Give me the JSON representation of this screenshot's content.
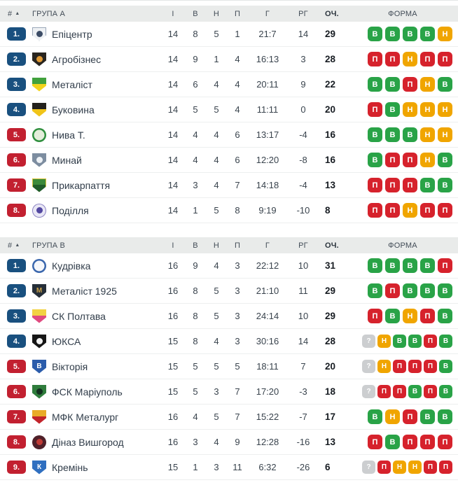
{
  "colors": {
    "header_bg": "#e9ebea",
    "rank_blue": "#19507f",
    "rank_red": "#c22030",
    "win": "#29a347",
    "draw": "#f0a500",
    "loss": "#d6222c",
    "unknown": "#ccced0"
  },
  "form_letters": {
    "w": "В",
    "d": "Н",
    "l": "П",
    "q": "?"
  },
  "columns": {
    "rank": "#",
    "sort_icon": "▲",
    "games": "І",
    "wins": "В",
    "draws": "Н",
    "losses": "П",
    "goals": "Г",
    "goal_diff": "РГ",
    "points": "ОЧ.",
    "form": "ФОРМА"
  },
  "groups": [
    {
      "title": "ГРУПА А",
      "rows": [
        {
          "rank": "1.",
          "zone": "blue",
          "team": "Епіцентр",
          "logo": {
            "shape": "shield",
            "style": "dot",
            "c1": "#eef1f4",
            "c2": "#3c4c66",
            "edge": "#9aa7b8"
          },
          "games": "14",
          "wins": "8",
          "draws": "5",
          "losses": "1",
          "goals": "21:7",
          "gd": "14",
          "points": "29",
          "form": [
            "w",
            "w",
            "w",
            "w",
            "d"
          ]
        },
        {
          "rank": "2.",
          "zone": "blue",
          "team": "Агробізнес",
          "logo": {
            "shape": "shield",
            "style": "dot",
            "c1": "#29251f",
            "c2": "#e09a35"
          },
          "games": "14",
          "wins": "9",
          "draws": "1",
          "losses": "4",
          "goals": "16:13",
          "gd": "3",
          "points": "28",
          "form": [
            "l",
            "l",
            "d",
            "l",
            "l"
          ]
        },
        {
          "rank": "3.",
          "zone": "blue",
          "team": "Металіст",
          "logo": {
            "shape": "shield",
            "style": "two-tone",
            "c1": "#41a13d",
            "c2": "#f2d31c"
          },
          "games": "14",
          "wins": "6",
          "draws": "4",
          "losses": "4",
          "goals": "20:11",
          "gd": "9",
          "points": "22",
          "form": [
            "w",
            "w",
            "l",
            "d",
            "w"
          ]
        },
        {
          "rank": "4.",
          "zone": "blue",
          "team": "Буковина",
          "logo": {
            "shape": "shield",
            "style": "two-tone",
            "c1": "#23211d",
            "c2": "#f0c419"
          },
          "games": "14",
          "wins": "5",
          "draws": "5",
          "losses": "4",
          "goals": "11:11",
          "gd": "0",
          "points": "20",
          "form": [
            "l",
            "w",
            "d",
            "d",
            "d"
          ]
        },
        {
          "rank": "5.",
          "zone": "red",
          "team": "Нива Т.",
          "logo": {
            "shape": "circle",
            "style": "ring",
            "c1": "#e4eedb",
            "c2": "#2f8f3e"
          },
          "games": "14",
          "wins": "4",
          "draws": "4",
          "losses": "6",
          "goals": "13:17",
          "gd": "-4",
          "points": "16",
          "form": [
            "w",
            "w",
            "w",
            "d",
            "d"
          ]
        },
        {
          "rank": "6.",
          "zone": "red",
          "team": "Минай",
          "logo": {
            "shape": "shield",
            "style": "dot",
            "c1": "#7d8da0",
            "c2": "#eef2f6"
          },
          "games": "14",
          "wins": "4",
          "draws": "4",
          "losses": "6",
          "goals": "12:20",
          "gd": "-8",
          "points": "16",
          "form": [
            "w",
            "l",
            "l",
            "d",
            "w"
          ]
        },
        {
          "rank": "7.",
          "zone": "red",
          "team": "Прикарпаття",
          "logo": {
            "shape": "shield",
            "style": "two-tone",
            "c1": "#3b8a3b",
            "c2": "#1f5c2a",
            "edge": "#d8c23a"
          },
          "games": "14",
          "wins": "3",
          "draws": "4",
          "losses": "7",
          "goals": "14:18",
          "gd": "-4",
          "points": "13",
          "form": [
            "l",
            "l",
            "l",
            "w",
            "w"
          ]
        },
        {
          "rank": "8.",
          "zone": "red",
          "team": "Поділля",
          "logo": {
            "shape": "circle",
            "style": "dot",
            "c1": "#e9e7f5",
            "c2": "#5146a0",
            "edge": "#8d85c4"
          },
          "games": "14",
          "wins": "1",
          "draws": "5",
          "losses": "8",
          "goals": "9:19",
          "gd": "-10",
          "points": "8",
          "form": [
            "l",
            "l",
            "d",
            "l",
            "l"
          ]
        }
      ]
    },
    {
      "title": "ГРУПА В",
      "rows": [
        {
          "rank": "1.",
          "zone": "blue",
          "team": "Кудрівка",
          "logo": {
            "shape": "circle",
            "style": "ring",
            "c1": "#f5f7fb",
            "c2": "#3a67ad"
          },
          "games": "16",
          "wins": "9",
          "draws": "4",
          "losses": "3",
          "goals": "22:12",
          "gd": "10",
          "points": "31",
          "form": [
            "w",
            "w",
            "w",
            "w",
            "l"
          ]
        },
        {
          "rank": "2.",
          "zone": "blue",
          "team": "Металіст 1925",
          "logo": {
            "shape": "shield",
            "style": "letter",
            "c1": "#252e38",
            "c2": "#c9a24b",
            "letter": "М"
          },
          "games": "16",
          "wins": "8",
          "draws": "5",
          "losses": "3",
          "goals": "21:10",
          "gd": "11",
          "points": "29",
          "form": [
            "w",
            "l",
            "w",
            "w",
            "w"
          ]
        },
        {
          "rank": "3.",
          "zone": "blue",
          "team": "СК Полтава",
          "logo": {
            "shape": "shield",
            "style": "two-tone",
            "c1": "#f2d243",
            "c2": "#e04a80"
          },
          "games": "16",
          "wins": "8",
          "draws": "5",
          "losses": "3",
          "goals": "24:14",
          "gd": "10",
          "points": "29",
          "form": [
            "l",
            "w",
            "d",
            "l",
            "w"
          ]
        },
        {
          "rank": "4.",
          "zone": "blue",
          "team": "ЮКСА",
          "logo": {
            "shape": "shield",
            "style": "dot",
            "c1": "#161616",
            "c2": "#f2f2f2"
          },
          "games": "15",
          "wins": "8",
          "draws": "4",
          "losses": "3",
          "goals": "30:16",
          "gd": "14",
          "points": "28",
          "form": [
            "q",
            "d",
            "w",
            "w",
            "l",
            "w"
          ]
        },
        {
          "rank": "5.",
          "zone": "red",
          "team": "Вікторія",
          "logo": {
            "shape": "shield",
            "style": "letter",
            "c1": "#2b5cab",
            "c2": "#ffffff",
            "letter": "В"
          },
          "games": "15",
          "wins": "5",
          "draws": "5",
          "losses": "5",
          "goals": "18:11",
          "gd": "7",
          "points": "20",
          "form": [
            "q",
            "d",
            "l",
            "l",
            "l",
            "w"
          ]
        },
        {
          "rank": "6.",
          "zone": "red",
          "team": "ФСК Маріуполь",
          "logo": {
            "shape": "shield",
            "style": "dot",
            "c1": "#2f7c3c",
            "c2": "#143020"
          },
          "games": "15",
          "wins": "5",
          "draws": "3",
          "losses": "7",
          "goals": "17:20",
          "gd": "-3",
          "points": "18",
          "form": [
            "q",
            "l",
            "l",
            "w",
            "l",
            "w"
          ]
        },
        {
          "rank": "7.",
          "zone": "red",
          "team": "МФК Металург",
          "logo": {
            "shape": "shield",
            "style": "two-tone",
            "c1": "#e9ab28",
            "c2": "#c2242b"
          },
          "games": "16",
          "wins": "4",
          "draws": "5",
          "losses": "7",
          "goals": "15:22",
          "gd": "-7",
          "points": "17",
          "form": [
            "w",
            "d",
            "l",
            "w",
            "w"
          ]
        },
        {
          "rank": "8.",
          "zone": "red",
          "team": "Діназ Вишгород",
          "logo": {
            "shape": "circle",
            "style": "dot",
            "c1": "#4f2029",
            "c2": "#c03a35"
          },
          "games": "16",
          "wins": "3",
          "draws": "4",
          "losses": "9",
          "goals": "12:28",
          "gd": "-16",
          "points": "13",
          "form": [
            "l",
            "w",
            "l",
            "l",
            "l"
          ]
        },
        {
          "rank": "9.",
          "zone": "red",
          "team": "Кремінь",
          "logo": {
            "shape": "shield",
            "style": "letter",
            "c1": "#2f6fc0",
            "c2": "#ffffff",
            "letter": "К"
          },
          "games": "15",
          "wins": "1",
          "draws": "3",
          "losses": "11",
          "goals": "6:32",
          "gd": "-26",
          "points": "6",
          "form": [
            "q",
            "l",
            "d",
            "d",
            "l",
            "l"
          ]
        }
      ]
    }
  ]
}
